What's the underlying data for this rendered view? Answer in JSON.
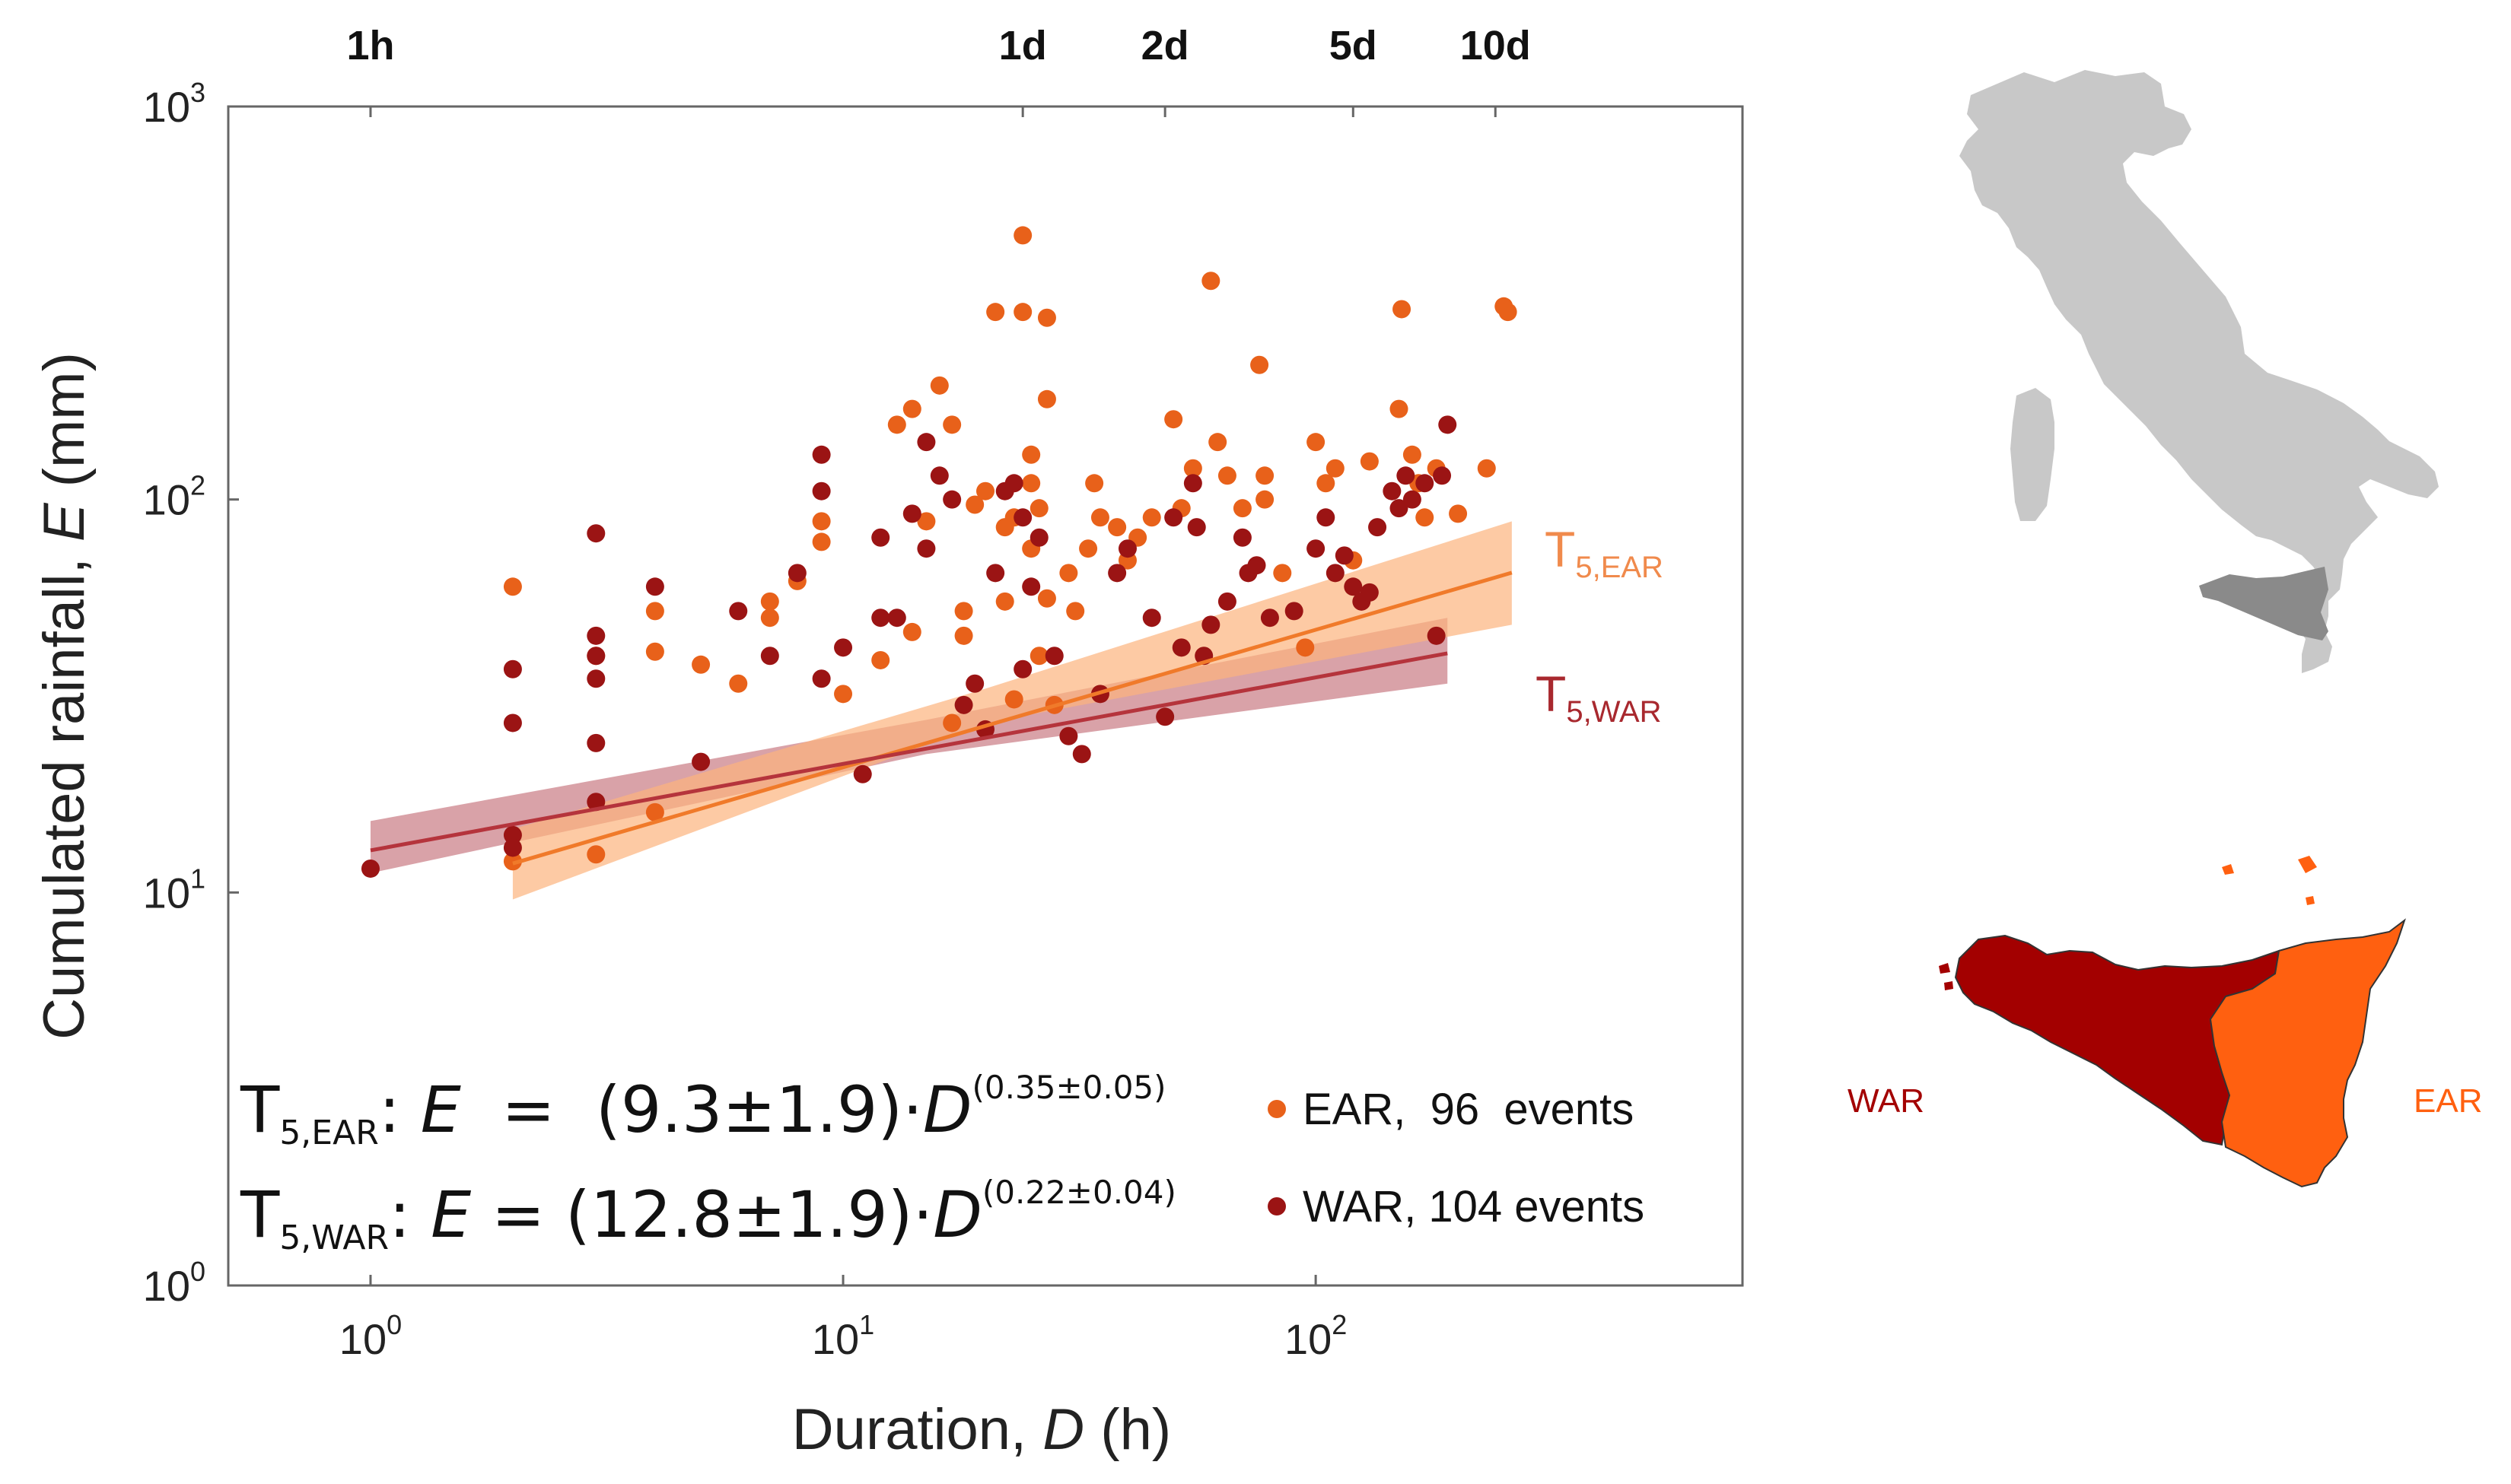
{
  "chart_data": {
    "type": "scatter",
    "xlabel_prefix": "Duration, ",
    "xlabel_var": "D",
    "xlabel_suffix": " (h)",
    "ylabel_prefix": "Cumulated rainfall, ",
    "ylabel_var": "E",
    "ylabel_suffix": " (mm)",
    "xscale": "log",
    "yscale": "log",
    "xlim": [
      0.5,
      800
    ],
    "ylim": [
      1,
      1000
    ],
    "x_ticks": [
      {
        "value": 1,
        "base": "10",
        "exp": "0"
      },
      {
        "value": 10,
        "base": "10",
        "exp": "1"
      },
      {
        "value": 100,
        "base": "10",
        "exp": "2"
      }
    ],
    "y_ticks": [
      {
        "value": 1,
        "base": "10",
        "exp": "0"
      },
      {
        "value": 10,
        "base": "10",
        "exp": "1"
      },
      {
        "value": 100,
        "base": "10",
        "exp": "2"
      },
      {
        "value": 1000,
        "base": "10",
        "exp": "3"
      }
    ],
    "top_ticks": [
      {
        "value": 1,
        "label": "1h"
      },
      {
        "value": 24,
        "label": "1d"
      },
      {
        "value": 48,
        "label": "2d"
      },
      {
        "value": 120,
        "label": "5d"
      },
      {
        "value": 240,
        "label": "10d"
      }
    ],
    "colors": {
      "EAR": "#e8611a",
      "WAR": "#9b1414",
      "EAR_line": "#f07a2a",
      "WAR_line": "#b5343c",
      "EAR_band": "#fcb47d",
      "WAR_band": "#c97a83",
      "EAR_label": "#f08a4c",
      "WAR_label": "#a8282e"
    },
    "series": [
      {
        "name": "EAR",
        "points": [
          [
            2,
            60
          ],
          [
            2,
            12
          ],
          [
            3,
            40
          ],
          [
            3,
            12.5
          ],
          [
            4,
            52
          ],
          [
            4,
            41
          ],
          [
            4,
            16
          ],
          [
            5,
            38
          ],
          [
            6,
            34
          ],
          [
            7,
            55
          ],
          [
            7,
            50
          ],
          [
            8,
            62
          ],
          [
            9,
            88
          ],
          [
            9,
            78
          ],
          [
            10,
            32
          ],
          [
            12,
            39
          ],
          [
            13,
            155
          ],
          [
            14,
            170
          ],
          [
            14,
            46
          ],
          [
            15,
            88
          ],
          [
            16,
            195
          ],
          [
            17,
            155
          ],
          [
            17,
            27
          ],
          [
            18,
            52
          ],
          [
            18,
            45
          ],
          [
            19,
            97
          ],
          [
            20,
            105
          ],
          [
            21,
            300
          ],
          [
            22,
            55
          ],
          [
            22,
            85
          ],
          [
            23,
            90
          ],
          [
            23,
            31
          ],
          [
            24,
            470
          ],
          [
            24,
            300
          ],
          [
            25,
            130
          ],
          [
            25,
            110
          ],
          [
            25,
            75
          ],
          [
            26,
            95
          ],
          [
            26,
            40
          ],
          [
            27,
            290
          ],
          [
            27,
            180
          ],
          [
            27,
            56
          ],
          [
            28,
            30
          ],
          [
            30,
            65
          ],
          [
            31,
            52
          ],
          [
            33,
            75
          ],
          [
            34,
            110
          ],
          [
            35,
            90
          ],
          [
            38,
            85
          ],
          [
            40,
            70
          ],
          [
            42,
            80
          ],
          [
            45,
            90
          ],
          [
            50,
            160
          ],
          [
            52,
            95
          ],
          [
            55,
            120
          ],
          [
            60,
            360
          ],
          [
            62,
            140
          ],
          [
            65,
            115
          ],
          [
            70,
            95
          ],
          [
            76,
            220
          ],
          [
            78,
            115
          ],
          [
            78,
            100
          ],
          [
            85,
            65
          ],
          [
            95,
            42
          ],
          [
            100,
            140
          ],
          [
            105,
            110
          ],
          [
            110,
            120
          ],
          [
            120,
            70
          ],
          [
            130,
            125
          ],
          [
            150,
            170
          ],
          [
            152,
            305
          ],
          [
            160,
            130
          ],
          [
            165,
            110
          ],
          [
            170,
            90
          ],
          [
            180,
            120
          ],
          [
            200,
            92
          ],
          [
            230,
            120
          ],
          [
            250,
            310
          ],
          [
            255,
            300
          ]
        ]
      },
      {
        "name": "WAR",
        "points": [
          [
            1,
            11.5
          ],
          [
            2,
            37
          ],
          [
            2,
            27
          ],
          [
            2,
            14
          ],
          [
            2,
            13
          ],
          [
            3,
            82
          ],
          [
            3,
            45
          ],
          [
            3,
            40
          ],
          [
            3,
            35
          ],
          [
            3,
            24
          ],
          [
            3,
            17
          ],
          [
            4,
            60
          ],
          [
            5,
            21.5
          ],
          [
            6,
            52
          ],
          [
            7,
            40
          ],
          [
            8,
            65
          ],
          [
            9,
            130
          ],
          [
            9,
            105
          ],
          [
            9,
            35
          ],
          [
            10,
            42
          ],
          [
            11,
            20
          ],
          [
            12,
            80
          ],
          [
            12,
            50
          ],
          [
            13,
            50
          ],
          [
            14,
            92
          ],
          [
            15,
            140
          ],
          [
            15,
            75
          ],
          [
            16,
            115
          ],
          [
            17,
            100
          ],
          [
            18,
            30
          ],
          [
            19,
            34
          ],
          [
            20,
            26
          ],
          [
            21,
            65
          ],
          [
            22,
            105
          ],
          [
            23,
            110
          ],
          [
            24,
            90
          ],
          [
            24,
            37
          ],
          [
            25,
            60
          ],
          [
            26,
            80
          ],
          [
            28,
            40
          ],
          [
            30,
            25
          ],
          [
            32,
            22.5
          ],
          [
            35,
            32
          ],
          [
            38,
            65
          ],
          [
            40,
            75
          ],
          [
            45,
            50
          ],
          [
            48,
            28
          ],
          [
            50,
            90
          ],
          [
            52,
            42
          ],
          [
            55,
            110
          ],
          [
            56,
            85
          ],
          [
            58,
            40
          ],
          [
            60,
            48
          ],
          [
            65,
            55
          ],
          [
            70,
            80
          ],
          [
            72,
            65
          ],
          [
            75,
            68
          ],
          [
            80,
            50
          ],
          [
            90,
            52
          ],
          [
            100,
            75
          ],
          [
            105,
            90
          ],
          [
            110,
            65
          ],
          [
            115,
            72
          ],
          [
            120,
            60
          ],
          [
            125,
            55
          ],
          [
            130,
            58
          ],
          [
            135,
            85
          ],
          [
            145,
            105
          ],
          [
            150,
            95
          ],
          [
            155,
            115
          ],
          [
            160,
            100
          ],
          [
            170,
            110
          ],
          [
            180,
            45
          ],
          [
            185,
            115
          ],
          [
            190,
            155
          ]
        ]
      }
    ],
    "fits": [
      {
        "name": "T5,EAR",
        "a": 9.3,
        "b": 0.35,
        "x_range": [
          2,
          260
        ],
        "band": [
          [
            2,
            9.6,
            14.5
          ],
          [
            20,
            27,
            33
          ],
          [
            260,
            48,
            88
          ]
        ]
      },
      {
        "name": "T5,WAR",
        "a": 12.8,
        "b": 0.22,
        "x_range": [
          1,
          190
        ],
        "band": [
          [
            1,
            11.2,
            15.2
          ],
          [
            15,
            22.5,
            27.5
          ],
          [
            190,
            34,
            50
          ]
        ]
      }
    ],
    "fit_labels": {
      "EAR_main": "T",
      "EAR_sub": "5,EAR",
      "WAR_main": "T",
      "WAR_sub": "5,WAR"
    },
    "equations": [
      {
        "lhs_main": "T",
        "lhs_sub": "5,EAR",
        "colon": ":",
        "body_1": "  ",
        "var_E": "E",
        "body_2": "  =  (9.3±1.9)·",
        "var_D": "D",
        "exponent": "(0.35±0.05)"
      },
      {
        "lhs_main": "T",
        "lhs_sub": "5,WAR",
        "colon": ":",
        "body_1": " ",
        "var_E": "E",
        "body_2": " = (12.8±1.9)·",
        "var_D": "D",
        "exponent": "(0.22±0.04)"
      }
    ],
    "legend": [
      {
        "series": "EAR",
        "label": "EAR,  96  events"
      },
      {
        "series": "WAR",
        "label": "WAR, 104 events"
      }
    ]
  },
  "map": {
    "war_label": "WAR",
    "ear_label": "EAR",
    "italy_color": "#c8c8c8",
    "sicily_highlight_color": "#8a8a8a",
    "war_color": "#a30000",
    "ear_color": "#ff6010"
  }
}
